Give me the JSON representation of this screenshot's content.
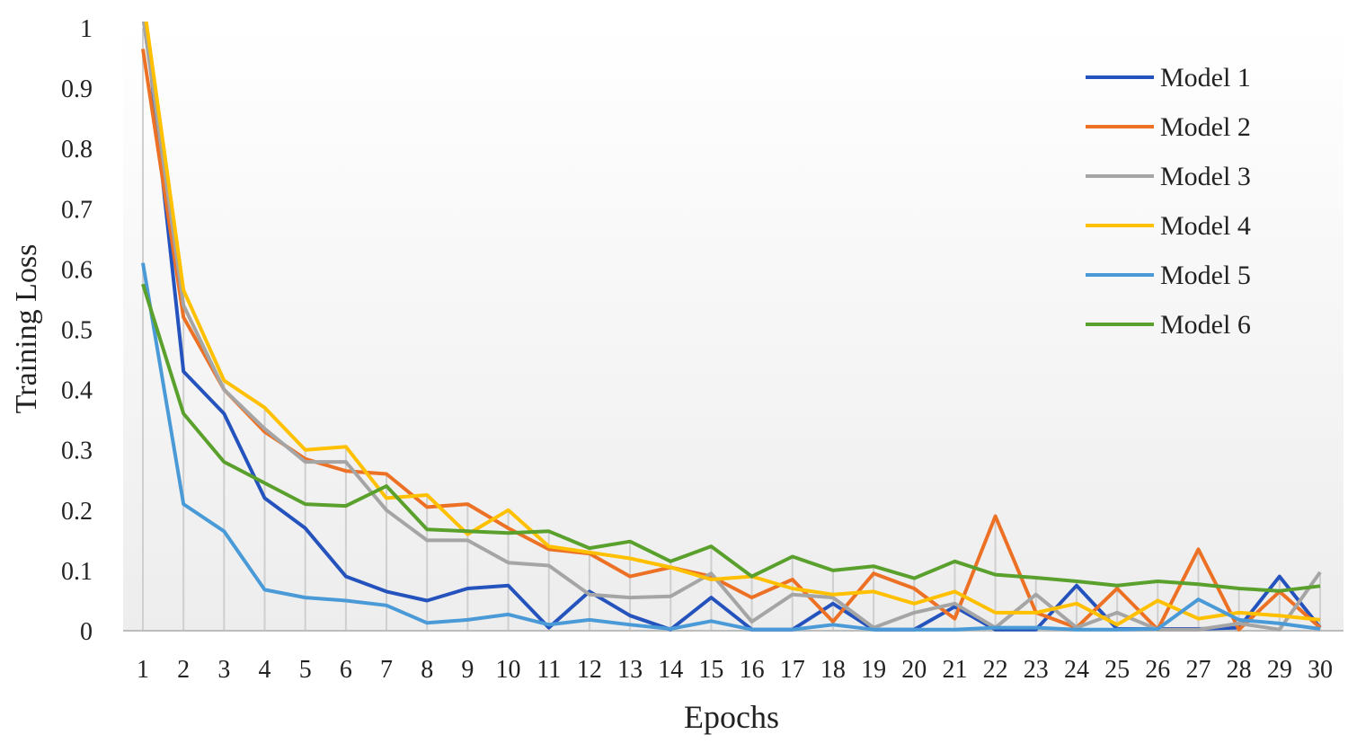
{
  "chart_data": {
    "type": "line",
    "title": "",
    "xlabel": "Epochs",
    "ylabel": "Training Loss",
    "ylim": [
      0,
      1
    ],
    "yticks": [
      "0",
      "0.1",
      "0.2",
      "0.3",
      "0.4",
      "0.5",
      "0.6",
      "0.7",
      "0.8",
      "0.9",
      "1"
    ],
    "ytick_values": [
      0,
      0.1,
      0.2,
      0.3,
      0.4,
      0.5,
      0.6,
      0.7,
      0.8,
      0.9,
      1
    ],
    "categories": [
      "1",
      "2",
      "3",
      "4",
      "5",
      "6",
      "7",
      "8",
      "9",
      "10",
      "11",
      "12",
      "13",
      "14",
      "15",
      "16",
      "17",
      "18",
      "19",
      "20",
      "21",
      "22",
      "23",
      "24",
      "25",
      "26",
      "27",
      "28",
      "29",
      "30"
    ],
    "legend_position": "top-right",
    "series": [
      {
        "name": "Model 1",
        "color": "#2553bd",
        "values": [
          1.05,
          0.43,
          0.36,
          0.22,
          0.17,
          0.09,
          0.065,
          0.05,
          0.07,
          0.075,
          0.005,
          0.065,
          0.025,
          0.002,
          0.055,
          0.002,
          0.002,
          0.045,
          0.002,
          0.002,
          0.04,
          0.002,
          0.002,
          0.075,
          0.003,
          0.003,
          0.003,
          0.005,
          0.09,
          0.005
        ]
      },
      {
        "name": "Model 2",
        "color": "#ed7125",
        "values": [
          0.965,
          0.52,
          0.4,
          0.33,
          0.285,
          0.265,
          0.26,
          0.205,
          0.21,
          0.17,
          0.135,
          0.128,
          0.09,
          0.105,
          0.09,
          0.055,
          0.085,
          0.015,
          0.095,
          0.07,
          0.02,
          0.19,
          0.03,
          0.005,
          0.07,
          0.002,
          0.135,
          0.002,
          0.065,
          0.005
        ]
      },
      {
        "name": "Model 3",
        "color": "#a5a5a5",
        "values": [
          1.02,
          0.54,
          0.4,
          0.335,
          0.28,
          0.28,
          0.2,
          0.15,
          0.15,
          0.113,
          0.108,
          0.06,
          0.055,
          0.057,
          0.095,
          0.015,
          0.06,
          0.055,
          0.005,
          0.03,
          0.045,
          0.005,
          0.06,
          0.005,
          0.03,
          0.002,
          0.002,
          0.012,
          0.002,
          0.097
        ]
      },
      {
        "name": "Model 4",
        "color": "#ffc000",
        "values": [
          1.05,
          0.565,
          0.415,
          0.37,
          0.3,
          0.305,
          0.22,
          0.225,
          0.16,
          0.2,
          0.14,
          0.13,
          0.12,
          0.105,
          0.085,
          0.09,
          0.07,
          0.06,
          0.065,
          0.045,
          0.065,
          0.03,
          0.03,
          0.045,
          0.01,
          0.05,
          0.02,
          0.03,
          0.025,
          0.018
        ]
      },
      {
        "name": "Model 5",
        "color": "#4a9ad8",
        "values": [
          0.61,
          0.21,
          0.165,
          0.068,
          0.055,
          0.05,
          0.042,
          0.013,
          0.018,
          0.027,
          0.01,
          0.018,
          0.01,
          0.003,
          0.016,
          0.002,
          0.002,
          0.01,
          0.002,
          0.002,
          0.002,
          0.005,
          0.005,
          0.002,
          0.002,
          0.003,
          0.052,
          0.018,
          0.012,
          0.003
        ]
      },
      {
        "name": "Model 6",
        "color": "#5aa02c",
        "values": [
          0.575,
          0.36,
          0.28,
          0.245,
          0.21,
          0.207,
          0.24,
          0.168,
          0.165,
          0.162,
          0.165,
          0.137,
          0.148,
          0.115,
          0.14,
          0.09,
          0.123,
          0.1,
          0.107,
          0.087,
          0.115,
          0.093,
          0.088,
          0.082,
          0.075,
          0.082,
          0.077,
          0.07,
          0.066,
          0.074
        ]
      }
    ]
  }
}
